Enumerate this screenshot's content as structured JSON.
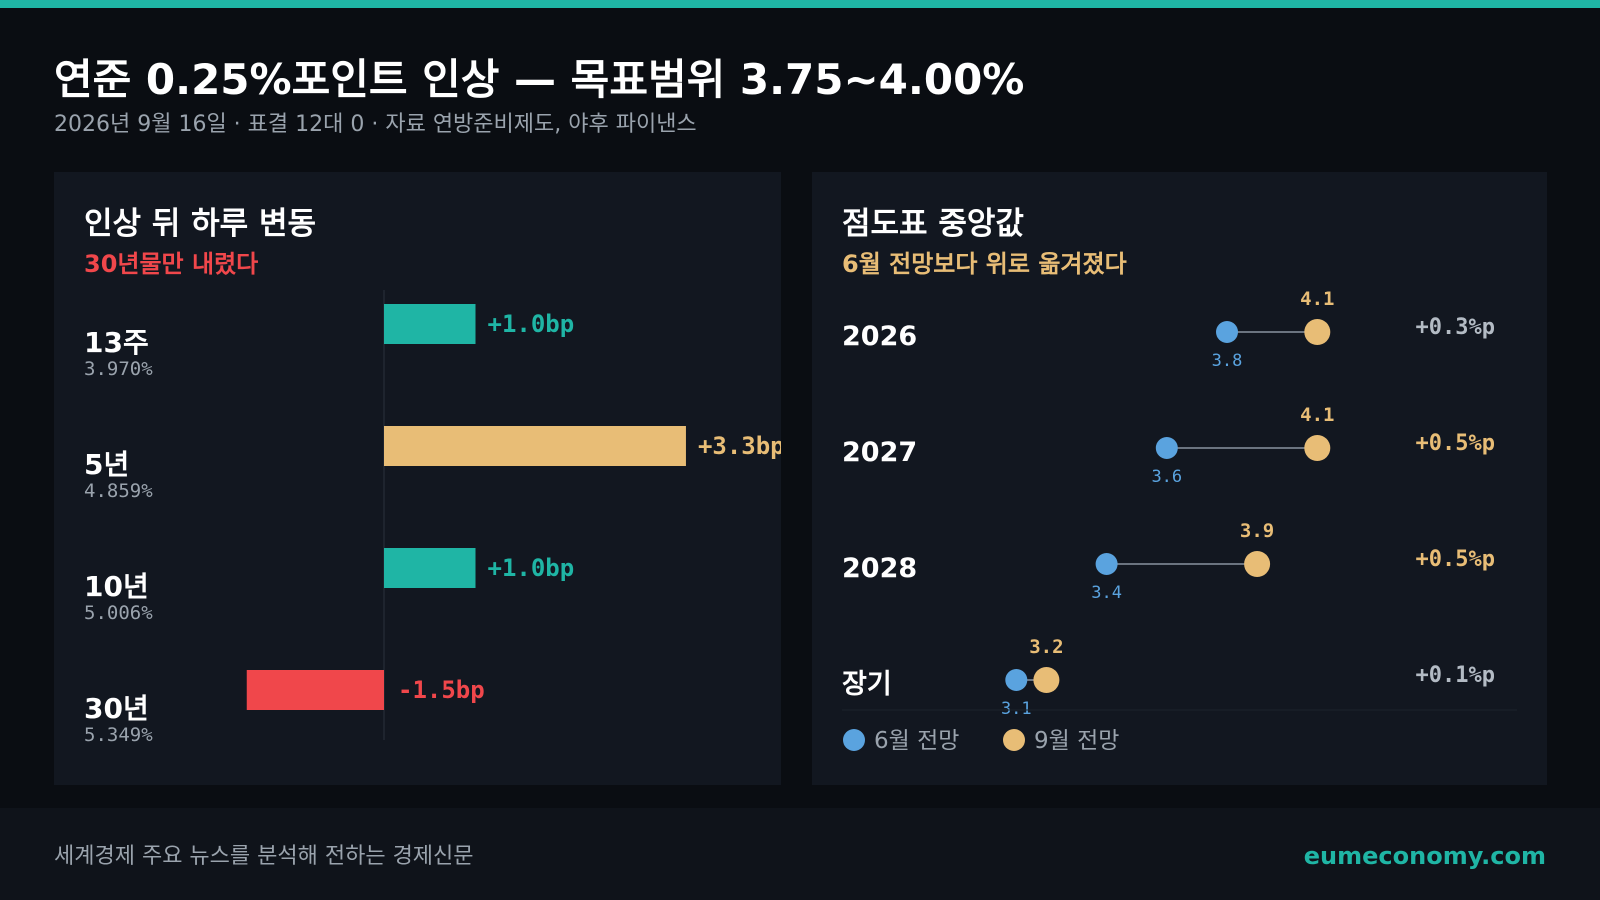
{
  "header": {
    "title": "연준 0.25%포인트 인상 — 목표범위 3.75~4.00%",
    "subtitle": "2026년 9월 16일 · 표결 12대 0 · 자료 연방준비제도, 야후 파이낸스"
  },
  "left_panel": {
    "title": "인상 뒤 하루 변동",
    "subtitle": "30년물만 내렸다"
  },
  "right_panel": {
    "title": "점도표 중앙값",
    "subtitle": "6월 전망보다 위로 옮겨졌다"
  },
  "footer": {
    "tagline": "세계경제 주요 뉴스를 분석해 전하는 경제신문",
    "site": "eumeconomy.com"
  },
  "colors": {
    "accent": "#1fb5a5",
    "positive": "#1fb5a5",
    "highlight": "#e8bd76",
    "negative": "#f0474b",
    "june": "#5aa3df",
    "september": "#e8bd76",
    "muted": "#9aa3ad"
  },
  "chart_data": [
    {
      "type": "bar",
      "orientation": "horizontal",
      "categories": [
        "13주",
        "5년",
        "10년",
        "30년"
      ],
      "yields": [
        "3.970%",
        "4.859%",
        "5.006%",
        "5.349%"
      ],
      "values": [
        1.0,
        3.3,
        1.0,
        -1.5
      ],
      "value_labels": [
        "+1.0bp",
        "+3.3bp",
        "+1.0bp",
        "-1.5bp"
      ],
      "bar_colors": [
        "#1fb5a5",
        "#e8bd76",
        "#1fb5a5",
        "#f0474b"
      ],
      "unit": "bp",
      "title": "인상 뒤 하루 변동",
      "subtitle": "30년물만 내렸다"
    },
    {
      "type": "dumbbell",
      "categories": [
        "2026",
        "2027",
        "2028",
        "장기"
      ],
      "series": [
        {
          "name": "6월 전망",
          "values": [
            3.8,
            3.6,
            3.4,
            3.1
          ],
          "color": "#5aa3df"
        },
        {
          "name": "9월 전망",
          "values": [
            4.1,
            4.1,
            3.9,
            3.2
          ],
          "color": "#e8bd76"
        }
      ],
      "changes": [
        "+0.3%p",
        "+0.5%p",
        "+0.5%p",
        "+0.1%p"
      ],
      "change_colors": [
        "#b3bbc4",
        "#e8bd76",
        "#e8bd76",
        "#b3bbc4"
      ],
      "title": "점도표 중앙값",
      "subtitle": "6월 전망보다 위로 옮겨졌다",
      "legend": "bottom-left"
    }
  ]
}
